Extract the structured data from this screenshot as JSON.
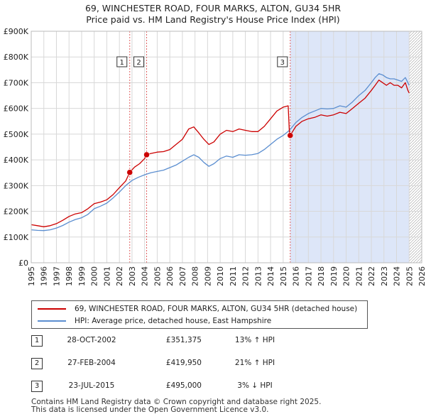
{
  "title": {
    "line1": "69, WINCHESTER ROAD, FOUR MARKS, ALTON, GU34 5HR",
    "line2": "Price paid vs. HM Land Registry's House Price Index (HPI)"
  },
  "colors": {
    "price_line": "#cc0000",
    "hpi_line": "#5b8ed0",
    "sale_vline": "#e06060",
    "shade": "#dde6f8",
    "grid": "#d8d8d8"
  },
  "chart_data": {
    "type": "line",
    "title": "Price paid vs. HM Land Registry's House Price Index (HPI)",
    "xlim": [
      1995,
      2026
    ],
    "ylim": [
      0,
      900000
    ],
    "x_ticks": [
      "1995",
      "1996",
      "1997",
      "1998",
      "1999",
      "2000",
      "2001",
      "2002",
      "2003",
      "2004",
      "2005",
      "2006",
      "2007",
      "2008",
      "2009",
      "2010",
      "2011",
      "2012",
      "2013",
      "2014",
      "2015",
      "2016",
      "2017",
      "2018",
      "2019",
      "2020",
      "2021",
      "2022",
      "2023",
      "2024",
      "2025",
      "2026"
    ],
    "y_ticks": [
      {
        "value": 0,
        "label": "£0"
      },
      {
        "value": 100000,
        "label": "£100K"
      },
      {
        "value": 200000,
        "label": "£200K"
      },
      {
        "value": 300000,
        "label": "£300K"
      },
      {
        "value": 400000,
        "label": "£400K"
      },
      {
        "value": 500000,
        "label": "£500K"
      },
      {
        "value": 600000,
        "label": "£600K"
      },
      {
        "value": 700000,
        "label": "£700K"
      },
      {
        "value": 800000,
        "label": "£800K"
      },
      {
        "value": 900000,
        "label": "£900K"
      }
    ],
    "shaded_ranges": [
      [
        2015.56,
        2025.0
      ]
    ],
    "hatched_from": 2025.0,
    "series": [
      {
        "name": "69, WINCHESTER ROAD, FOUR MARKS, ALTON, GU34 5HR (detached house)",
        "color": "#cc0000",
        "x": [
          1995.0,
          1995.5,
          1996.0,
          1996.5,
          1997.0,
          1997.5,
          1998.0,
          1998.5,
          1999.0,
          1999.5,
          2000.0,
          2000.5,
          2001.0,
          2001.5,
          2002.0,
          2002.5,
          2002.82,
          2003.2,
          2003.6,
          2004.0,
          2004.16,
          2004.5,
          2005.0,
          2005.5,
          2006.0,
          2006.5,
          2007.0,
          2007.5,
          2007.9,
          2008.3,
          2008.7,
          2009.1,
          2009.5,
          2010.0,
          2010.5,
          2011.0,
          2011.5,
          2012.0,
          2012.5,
          2013.0,
          2013.5,
          2014.0,
          2014.5,
          2015.0,
          2015.4,
          2015.5,
          2015.56,
          2016.0,
          2016.5,
          2017.0,
          2017.5,
          2018.0,
          2018.5,
          2019.0,
          2019.5,
          2020.0,
          2020.5,
          2021.0,
          2021.5,
          2022.0,
          2022.3,
          2022.6,
          2022.9,
          2023.2,
          2023.5,
          2023.8,
          2024.1,
          2024.4,
          2024.7,
          2024.9,
          2025.0
        ],
        "values": [
          148000,
          144000,
          140000,
          144000,
          152000,
          165000,
          180000,
          190000,
          195000,
          210000,
          230000,
          236000,
          245000,
          265000,
          292000,
          318000,
          351375,
          372000,
          385000,
          405000,
          419950,
          425000,
          430000,
          432000,
          440000,
          460000,
          480000,
          520000,
          528000,
          505000,
          480000,
          460000,
          470000,
          500000,
          515000,
          510000,
          520000,
          515000,
          510000,
          510000,
          530000,
          560000,
          590000,
          605000,
          610000,
          500000,
          495000,
          530000,
          550000,
          560000,
          565000,
          575000,
          570000,
          575000,
          585000,
          580000,
          600000,
          620000,
          640000,
          670000,
          690000,
          710000,
          700000,
          690000,
          700000,
          690000,
          690000,
          680000,
          700000,
          670000,
          660000
        ]
      },
      {
        "name": "HPI: Average price, detached house, East Hampshire",
        "color": "#5b8ed0",
        "x": [
          1995.0,
          1995.5,
          1996.0,
          1996.5,
          1997.0,
          1997.5,
          1998.0,
          1998.5,
          1999.0,
          1999.5,
          2000.0,
          2000.5,
          2001.0,
          2001.5,
          2002.0,
          2002.5,
          2003.0,
          2003.5,
          2004.0,
          2004.5,
          2005.0,
          2005.5,
          2006.0,
          2006.5,
          2007.0,
          2007.5,
          2007.9,
          2008.3,
          2008.7,
          2009.1,
          2009.5,
          2010.0,
          2010.5,
          2011.0,
          2011.5,
          2012.0,
          2012.5,
          2013.0,
          2013.5,
          2014.0,
          2014.5,
          2015.0,
          2015.5,
          2016.0,
          2016.5,
          2017.0,
          2017.5,
          2018.0,
          2018.5,
          2019.0,
          2019.5,
          2020.0,
          2020.5,
          2021.0,
          2021.5,
          2022.0,
          2022.3,
          2022.6,
          2022.9,
          2023.2,
          2023.5,
          2023.8,
          2024.1,
          2024.4,
          2024.7,
          2024.9,
          2025.0
        ],
        "values": [
          128000,
          126000,
          125000,
          128000,
          135000,
          145000,
          158000,
          168000,
          175000,
          188000,
          210000,
          220000,
          232000,
          252000,
          275000,
          300000,
          320000,
          332000,
          342000,
          350000,
          355000,
          360000,
          370000,
          380000,
          395000,
          410000,
          420000,
          410000,
          390000,
          375000,
          385000,
          405000,
          415000,
          410000,
          420000,
          418000,
          420000,
          425000,
          440000,
          460000,
          480000,
          495000,
          515000,
          545000,
          565000,
          580000,
          590000,
          600000,
          598000,
          600000,
          610000,
          605000,
          625000,
          650000,
          670000,
          700000,
          720000,
          735000,
          730000,
          720000,
          715000,
          715000,
          710000,
          705000,
          720000,
          700000,
          690000
        ]
      }
    ],
    "sales": [
      {
        "num": "1",
        "x": 2002.82,
        "value": 351375
      },
      {
        "num": "2",
        "x": 2004.16,
        "value": 419950
      },
      {
        "num": "3",
        "x": 2015.56,
        "value": 495000
      }
    ]
  },
  "legend": {
    "items": [
      {
        "label": "69, WINCHESTER ROAD, FOUR MARKS, ALTON, GU34 5HR (detached house)"
      },
      {
        "label": "HPI: Average price, detached house, East Hampshire"
      }
    ]
  },
  "sales_table": [
    {
      "num": "1",
      "date": "28-OCT-2002",
      "price": "£351,375",
      "hpi": "13% ↑ HPI"
    },
    {
      "num": "2",
      "date": "27-FEB-2004",
      "price": "£419,950",
      "hpi": "21% ↑ HPI"
    },
    {
      "num": "3",
      "date": "23-JUL-2015",
      "price": "£495,000",
      "hpi": "3% ↓ HPI"
    }
  ],
  "footer": {
    "line1": "Contains HM Land Registry data © Crown copyright and database right 2025.",
    "line2": "This data is licensed under the Open Government Licence v3.0."
  }
}
